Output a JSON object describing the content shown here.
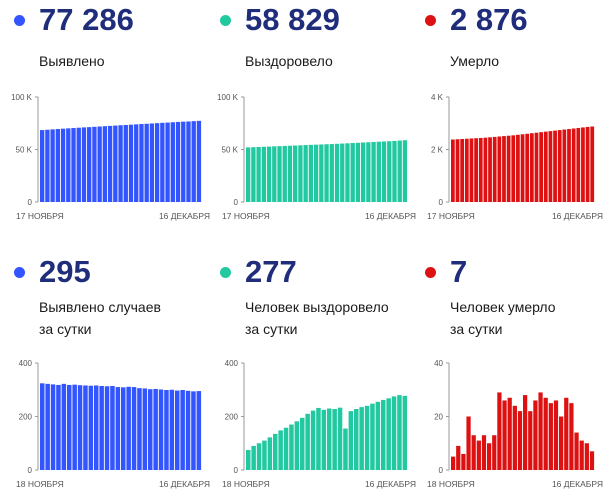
{
  "panels": [
    {
      "value": "77 286",
      "label_lines": [
        "Выявлено"
      ],
      "color": "#3355ff",
      "chart_data": {
        "type": "bar",
        "x_tick_labels": [
          "17 НОЯБРЯ",
          "16 ДЕКАБРЯ"
        ],
        "y_ticks": [
          {
            "v": 0,
            "t": "0"
          },
          {
            "v": 50000,
            "t": "50 K"
          },
          {
            "v": 100000,
            "t": "100 K"
          }
        ],
        "ylim": [
          0,
          100000
        ],
        "values": [
          68500,
          68800,
          69150,
          69500,
          69850,
          70150,
          70450,
          70750,
          71050,
          71300,
          71600,
          71900,
          72200,
          72500,
          72800,
          73100,
          73350,
          73650,
          73950,
          74250,
          74500,
          74800,
          75100,
          75400,
          75650,
          75950,
          76250,
          76500,
          76700,
          77000,
          77286
        ]
      }
    },
    {
      "value": "58 829",
      "label_lines": [
        "Выздоровело"
      ],
      "color": "#22c9a0",
      "chart_data": {
        "type": "bar",
        "x_tick_labels": [
          "17 НОЯБРЯ",
          "16 ДЕКАБРЯ"
        ],
        "y_ticks": [
          {
            "v": 0,
            "t": "0"
          },
          {
            "v": 50000,
            "t": "50 K"
          },
          {
            "v": 100000,
            "t": "100 K"
          }
        ],
        "ylim": [
          0,
          100000
        ],
        "values": [
          52000,
          52200,
          52400,
          52600,
          52800,
          53000,
          53200,
          53400,
          53600,
          53800,
          54000,
          54200,
          54400,
          54600,
          54800,
          55000,
          55200,
          55400,
          55650,
          55900,
          56150,
          56400,
          56650,
          56900,
          57150,
          57400,
          57650,
          57900,
          58150,
          58500,
          58829
        ]
      }
    },
    {
      "value": "2 876",
      "label_lines": [
        "Умерло"
      ],
      "color": "#dd1111",
      "chart_data": {
        "type": "bar",
        "x_tick_labels": [
          "17 НОЯБРЯ",
          "16 ДЕКАБРЯ"
        ],
        "y_ticks": [
          {
            "v": 0,
            "t": "0"
          },
          {
            "v": 2000,
            "t": "2 K"
          },
          {
            "v": 4000,
            "t": "4 K"
          }
        ],
        "ylim": [
          0,
          4000
        ],
        "values": [
          2380,
          2390,
          2400,
          2410,
          2420,
          2430,
          2440,
          2450,
          2465,
          2480,
          2495,
          2510,
          2525,
          2540,
          2560,
          2580,
          2600,
          2620,
          2640,
          2660,
          2680,
          2700,
          2720,
          2740,
          2760,
          2780,
          2800,
          2820,
          2840,
          2860,
          2876
        ]
      }
    },
    {
      "value": "295",
      "label_lines": [
        "Выявлено случаев",
        "за сутки"
      ],
      "color": "#3355ff",
      "chart_data": {
        "type": "bar",
        "x_tick_labels": [
          "18 НОЯБРЯ",
          "16 ДЕКАБРЯ"
        ],
        "y_ticks": [
          {
            "v": 0,
            "t": "0"
          },
          {
            "v": 200,
            "t": "200"
          },
          {
            "v": 400,
            "t": "400"
          }
        ],
        "ylim": [
          0,
          400
        ],
        "values": [
          324,
          322,
          320,
          318,
          322,
          318,
          319,
          317,
          316,
          315,
          316,
          314,
          313,
          314,
          310,
          309,
          311,
          310,
          306,
          305,
          302,
          303,
          301,
          299,
          300,
          297,
          299,
          296,
          294,
          295
        ]
      }
    },
    {
      "value": "277",
      "label_lines": [
        "Человек выздоровело",
        "за сутки"
      ],
      "color": "#22c9a0",
      "chart_data": {
        "type": "bar",
        "x_tick_labels": [
          "18 НОЯБРЯ",
          "16 ДЕКАБРЯ"
        ],
        "y_ticks": [
          {
            "v": 0,
            "t": "0"
          },
          {
            "v": 200,
            "t": "200"
          },
          {
            "v": 400,
            "t": "400"
          }
        ],
        "ylim": [
          0,
          400
        ],
        "values": [
          75,
          90,
          100,
          110,
          122,
          135,
          148,
          158,
          170,
          182,
          195,
          210,
          222,
          232,
          225,
          230,
          228,
          233,
          155,
          220,
          228,
          235,
          240,
          248,
          255,
          262,
          268,
          275,
          280,
          277
        ]
      }
    },
    {
      "value": "7",
      "label_lines": [
        "Человек умерло",
        "за сутки"
      ],
      "color": "#dd1111",
      "chart_data": {
        "type": "bar",
        "x_tick_labels": [
          "18 НОЯБРЯ",
          "16 ДЕКАБРЯ"
        ],
        "y_ticks": [
          {
            "v": 0,
            "t": "0"
          },
          {
            "v": 20,
            "t": "20"
          },
          {
            "v": 40,
            "t": "40"
          }
        ],
        "ylim": [
          0,
          40
        ],
        "values": [
          5,
          9,
          6,
          20,
          13,
          11,
          13,
          10,
          13,
          29,
          26,
          27,
          24,
          22,
          28,
          22,
          26,
          29,
          27,
          25,
          26,
          20,
          27,
          25,
          14,
          11,
          10,
          7
        ]
      }
    }
  ]
}
